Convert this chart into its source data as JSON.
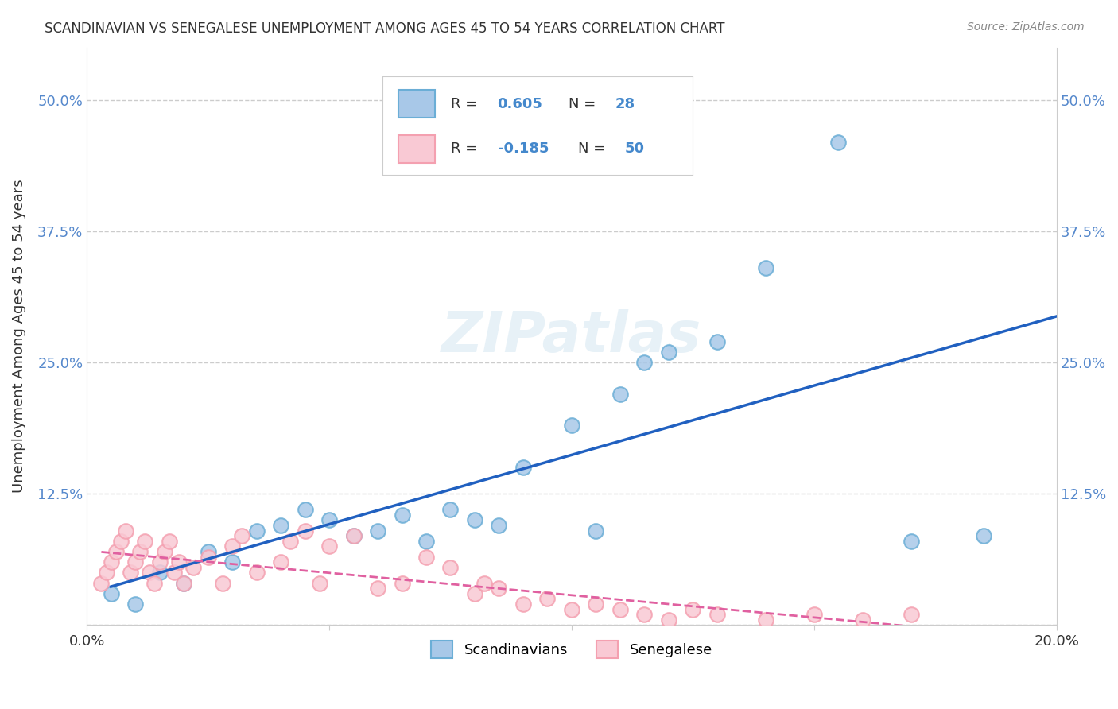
{
  "title": "SCANDINAVIAN VS SENEGALESE UNEMPLOYMENT AMONG AGES 45 TO 54 YEARS CORRELATION CHART",
  "source": "Source: ZipAtlas.com",
  "ylabel": "Unemployment Among Ages 45 to 54 years",
  "xlim": [
    0.0,
    0.2
  ],
  "ylim": [
    0.0,
    0.55
  ],
  "xticks": [
    0.0,
    0.05,
    0.1,
    0.15,
    0.2
  ],
  "yticks": [
    0.0,
    0.125,
    0.25,
    0.375,
    0.5
  ],
  "ytick_labels": [
    "",
    "12.5%",
    "25.0%",
    "37.5%",
    "50.0%"
  ],
  "xtick_labels": [
    "0.0%",
    "",
    "",
    "",
    "20.0%"
  ],
  "legend_label1": "Scandinavians",
  "legend_label2": "Senegalese",
  "blue_color": "#6baed6",
  "blue_fill": "#a8c8e8",
  "pink_color": "#f4a0b0",
  "pink_fill": "#f9c9d4",
  "trendline_blue": "#2060c0",
  "trendline_pink": "#e060a0",
  "background_color": "#ffffff",
  "grid_color": "#cccccc",
  "scandinavian_x": [
    0.01,
    0.005,
    0.02,
    0.015,
    0.03,
    0.025,
    0.04,
    0.035,
    0.045,
    0.05,
    0.055,
    0.06,
    0.065,
    0.07,
    0.075,
    0.08,
    0.085,
    0.09,
    0.1,
    0.105,
    0.11,
    0.115,
    0.12,
    0.13,
    0.14,
    0.155,
    0.17,
    0.185
  ],
  "scandinavian_y": [
    0.02,
    0.03,
    0.04,
    0.05,
    0.06,
    0.07,
    0.095,
    0.09,
    0.11,
    0.1,
    0.085,
    0.09,
    0.105,
    0.08,
    0.11,
    0.1,
    0.095,
    0.15,
    0.19,
    0.09,
    0.22,
    0.25,
    0.26,
    0.27,
    0.34,
    0.46,
    0.08,
    0.085
  ],
  "senegalese_x": [
    0.003,
    0.004,
    0.005,
    0.006,
    0.007,
    0.008,
    0.009,
    0.01,
    0.011,
    0.012,
    0.013,
    0.014,
    0.015,
    0.016,
    0.017,
    0.018,
    0.019,
    0.02,
    0.022,
    0.025,
    0.028,
    0.03,
    0.032,
    0.035,
    0.04,
    0.042,
    0.045,
    0.048,
    0.05,
    0.055,
    0.06,
    0.065,
    0.07,
    0.075,
    0.08,
    0.082,
    0.085,
    0.09,
    0.095,
    0.1,
    0.105,
    0.11,
    0.115,
    0.12,
    0.125,
    0.13,
    0.14,
    0.15,
    0.16,
    0.17
  ],
  "senegalese_y": [
    0.04,
    0.05,
    0.06,
    0.07,
    0.08,
    0.09,
    0.05,
    0.06,
    0.07,
    0.08,
    0.05,
    0.04,
    0.06,
    0.07,
    0.08,
    0.05,
    0.06,
    0.04,
    0.055,
    0.065,
    0.04,
    0.075,
    0.085,
    0.05,
    0.06,
    0.08,
    0.09,
    0.04,
    0.075,
    0.085,
    0.035,
    0.04,
    0.065,
    0.055,
    0.03,
    0.04,
    0.035,
    0.02,
    0.025,
    0.015,
    0.02,
    0.015,
    0.01,
    0.005,
    0.015,
    0.01,
    0.005,
    0.01,
    0.005,
    0.01
  ]
}
